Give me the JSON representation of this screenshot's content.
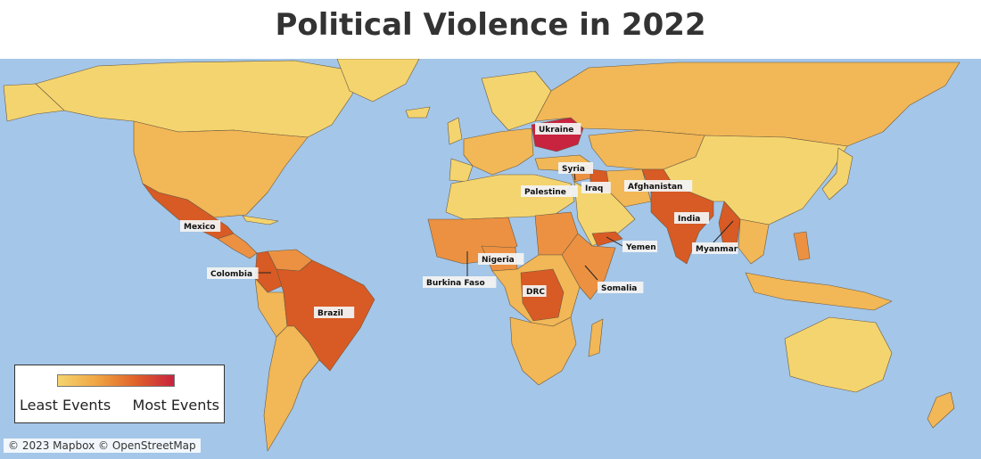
{
  "title": "Political Violence in 2022",
  "legend": {
    "min_label": "Least Events",
    "max_label": "Most Events",
    "colors": [
      "#f4d46e",
      "#f0a543",
      "#e0622a",
      "#c8233f"
    ]
  },
  "attribution": "© 2023 Mapbox © OpenStreetMap",
  "colors": {
    "ocean": "#a4c6e8",
    "level1": "#f4d46e",
    "level2": "#f2b756",
    "level3": "#ec9142",
    "level4": "#d85a24",
    "level5": "#c8233f"
  },
  "labels": [
    {
      "name": "ukraine",
      "text": "Ukraine"
    },
    {
      "name": "syria",
      "text": "Syria"
    },
    {
      "name": "palestine",
      "text": "Palestine"
    },
    {
      "name": "iraq",
      "text": "Iraq"
    },
    {
      "name": "afghanistan",
      "text": "Afghanistan"
    },
    {
      "name": "india",
      "text": "India"
    },
    {
      "name": "myanmar",
      "text": "Myanmar"
    },
    {
      "name": "yemen",
      "text": "Yemen"
    },
    {
      "name": "somalia",
      "text": "Somalia"
    },
    {
      "name": "drc",
      "text": "DRC"
    },
    {
      "name": "nigeria",
      "text": "Nigeria"
    },
    {
      "name": "burkina-faso",
      "text": "Burkina Faso"
    },
    {
      "name": "mexico",
      "text": "Mexico"
    },
    {
      "name": "colombia",
      "text": "Colombia"
    },
    {
      "name": "brazil",
      "text": "Brazil"
    }
  ]
}
